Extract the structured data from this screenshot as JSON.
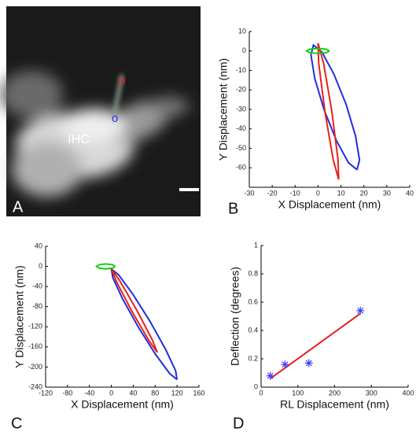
{
  "panel_labels": [
    "A",
    "B",
    "C",
    "D"
  ],
  "image": {
    "label": "IHC",
    "markers": [
      {
        "text": "o",
        "color": "#ff2020"
      },
      {
        "text": "o",
        "color": "#2030ff"
      }
    ]
  },
  "chart_data": [
    {
      "type": "line",
      "xlabel": "X Displacement (nm)",
      "ylabel": "Y Displacement (nm)",
      "xlim": [
        -30,
        40
      ],
      "xticks": [
        -30,
        -20,
        -10,
        0,
        10,
        20,
        30,
        40
      ],
      "ylim": [
        -70,
        10
      ],
      "yticks": [
        10,
        0,
        -10,
        -20,
        -30,
        -40,
        -50,
        -60
      ],
      "series": [
        {
          "color": "#1f2ee0",
          "x": [
            17,
            18.1,
            16.4,
            12.3,
            6.9,
            1.7,
            -2,
            -3.1,
            -1.4,
            2.7,
            8.1,
            13.3,
            17
          ],
          "y": [
            -61,
            -56,
            -43.8,
            -27.6,
            -11.8,
            -0.6,
            3,
            -2,
            -14.2,
            -30.4,
            -46.2,
            -57.4,
            -61
          ]
        },
        {
          "color": "#e8201c",
          "x": [
            9,
            8.7,
            6,
            2.4,
            0,
            0.3,
            3,
            6.6,
            9
          ],
          "y": [
            -66,
            -55.6,
            -30.8,
            -6.2,
            4,
            -6.4,
            -31.2,
            -55.8,
            -66
          ]
        },
        {
          "color": "#10d010",
          "x": [
            5,
            3.5,
            0,
            -3.5,
            -5,
            -3.5,
            0,
            3.5,
            5
          ],
          "y": [
            0,
            0.9,
            1.3,
            0.9,
            0,
            -0.9,
            -1.3,
            -0.9,
            0
          ]
        }
      ]
    },
    {
      "type": "line",
      "xlabel": "X Displacement (nm)",
      "ylabel": "Y Displacement (nm)",
      "xlim": [
        -120,
        160
      ],
      "xticks": [
        -120,
        -80,
        -40,
        0,
        40,
        80,
        120,
        160
      ],
      "ylim": [
        -240,
        40
      ],
      "yticks": [
        40,
        0,
        -40,
        -80,
        -120,
        -160,
        -200,
        -240
      ],
      "series": [
        {
          "color": "#1f2ee0",
          "x": [
            120,
            117.3,
            99.1,
            70.5,
            39.1,
            13.3,
            0,
            2.7,
            20.9,
            49.5,
            80.9,
            106.7,
            120
          ],
          "y": [
            -225,
            -207.3,
            -164.9,
            -109.1,
            -54.9,
            -16.7,
            -5,
            -22.7,
            -65.1,
            -120.9,
            -175.1,
            -213.3,
            -225
          ]
        },
        {
          "color": "#e8201c",
          "x": [
            84,
            74.5,
            46,
            15.1,
            0,
            9.5,
            38,
            68.9,
            84
          ],
          "y": [
            -171,
            -145.3,
            -86,
            -27.9,
            -5,
            -30.7,
            -90,
            -148.1,
            -171
          ]
        },
        {
          "color": "#10d010",
          "x": [
            7,
            2,
            -10,
            -22,
            -27,
            -22,
            -10,
            2,
            7
          ],
          "y": [
            0,
            3.5,
            5,
            3.5,
            0,
            -3.5,
            -5,
            -3.5,
            0
          ]
        }
      ]
    },
    {
      "type": "scatter",
      "xlabel": "RL Displacement (nm)",
      "ylabel": "Deflection (degrees)",
      "xlim": [
        0,
        400
      ],
      "xticks": [
        0,
        100,
        200,
        300,
        400
      ],
      "ylim": [
        0,
        1
      ],
      "yticks": [
        0,
        0.2,
        0.4,
        0.6,
        0.8,
        1
      ],
      "series": [
        {
          "color": "#e8201c",
          "style": "line",
          "x": [
            25,
            270
          ],
          "y": [
            0.06,
            0.52
          ]
        },
        {
          "color": "#3b3bff",
          "style": "markers",
          "x": [
            25,
            65,
            130,
            270
          ],
          "y": [
            0.08,
            0.16,
            0.17,
            0.54
          ]
        }
      ]
    }
  ]
}
